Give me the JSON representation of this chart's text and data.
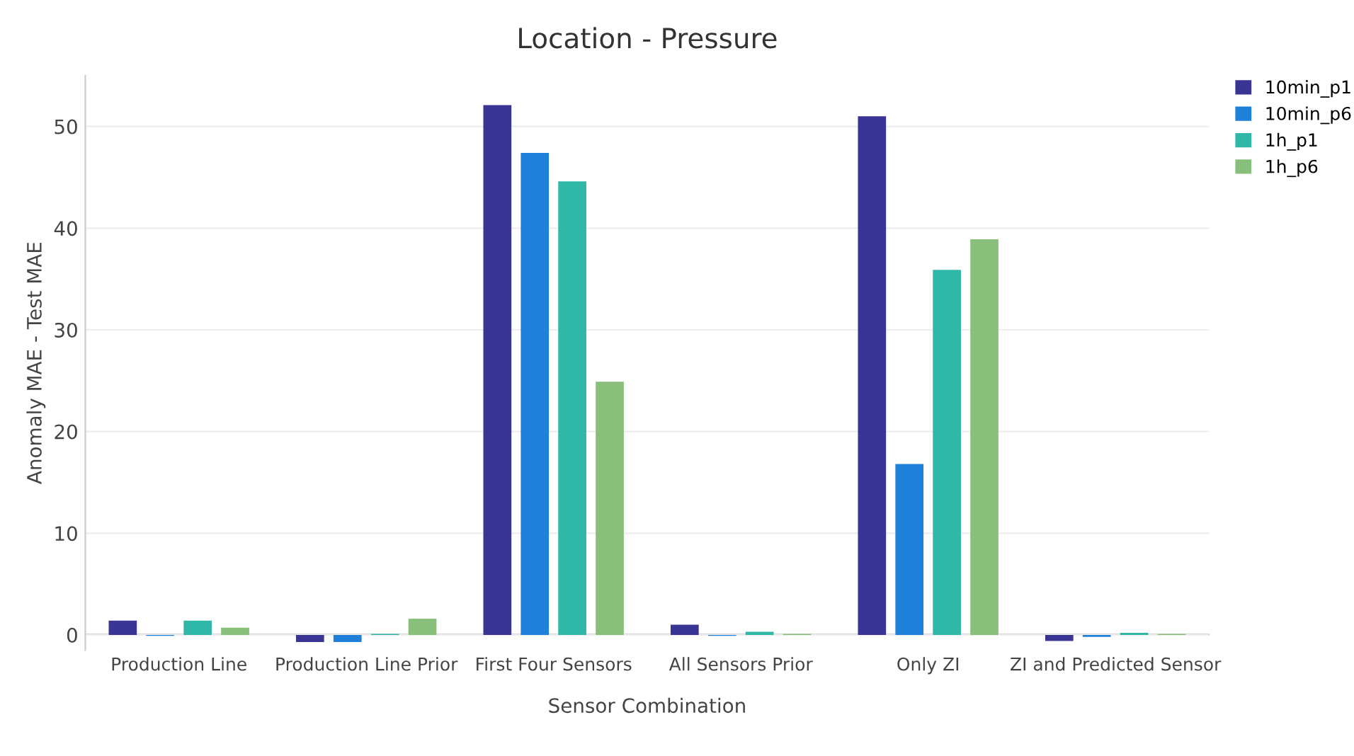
{
  "chart_data": {
    "type": "bar",
    "title": "Location - Pressure",
    "xlabel": "Sensor Combination",
    "ylabel": "Anomaly MAE - Test MAE",
    "categories": [
      "Production Line",
      "Production Line Prior",
      "First Four Sensors",
      "All Sensors Prior",
      "Only ZI",
      "ZI and Predicted Sensor"
    ],
    "series": [
      {
        "name": "10min_p1",
        "color": "#383594",
        "values": [
          1.4,
          -0.7,
          52.1,
          1.0,
          51.0,
          -0.6
        ]
      },
      {
        "name": "10min_p6",
        "color": "#1f80d9",
        "values": [
          -0.1,
          -0.7,
          47.4,
          -0.1,
          16.8,
          -0.2
        ]
      },
      {
        "name": "1h_p1",
        "color": "#2fb7a7",
        "values": [
          1.4,
          0.1,
          44.6,
          0.3,
          35.9,
          0.2
        ]
      },
      {
        "name": "1h_p6",
        "color": "#88bf7a",
        "values": [
          0.7,
          1.6,
          24.9,
          0.1,
          38.9,
          0.1
        ]
      }
    ],
    "ylim": [
      -1.5,
      55
    ],
    "yticks": [
      0,
      10,
      20,
      30,
      40,
      50
    ],
    "grid": "y",
    "legend": "top right"
  }
}
